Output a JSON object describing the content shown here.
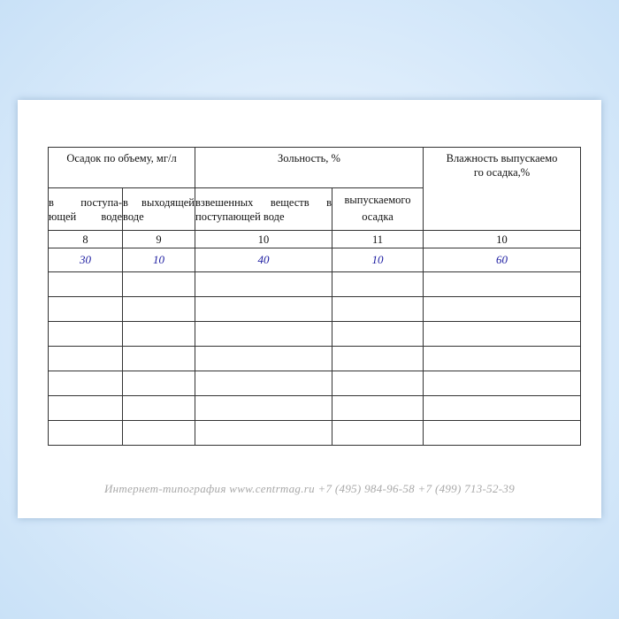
{
  "table": {
    "header": {
      "group1": "Осадок по объему, мг/л",
      "group2": "Зольность, %",
      "group3": "Влажность выпускаемо го осадка,%",
      "sub": [
        "в поступа-ющей воде",
        "в выходящей воде",
        "взвешенных веществ в поступающей воде",
        "выпускаемого осадка"
      ]
    },
    "column_numbers": [
      "8",
      "9",
      "10",
      "11",
      "10"
    ],
    "rows": [
      [
        "30",
        "10",
        "40",
        "10",
        "60"
      ]
    ],
    "empty_rows": 7
  },
  "footer": "Интернет-типография  www.centrmag.ru   +7 (495) 984-96-58  +7 (499) 713-52-39"
}
